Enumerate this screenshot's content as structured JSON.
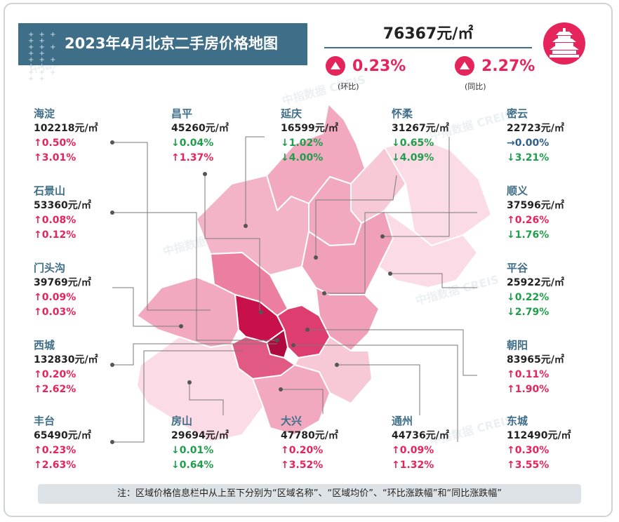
{
  "header": {
    "title": "2023年4月北京二手房价格地图",
    "avg_price": "76367元/㎡",
    "mom_value": "0.23%",
    "mom_label": "(环比)",
    "yoy_value": "2.27%",
    "yoy_label": "(同比)",
    "logo_icon": "temple-of-heaven-icon"
  },
  "colors": {
    "accent": "#3f6e88",
    "up": "#e5245c",
    "down": "#1f9e4b"
  },
  "watermark": "中指数据 CREIS",
  "districts": [
    {
      "id": "haidian",
      "name": "海淀",
      "price": "102218元/㎡",
      "mom": "↑0.50%",
      "mom_dir": "up",
      "yoy": "↑3.01%",
      "yoy_dir": "up"
    },
    {
      "id": "changping",
      "name": "昌平",
      "price": "45260元/㎡",
      "mom": "↓0.04%",
      "mom_dir": "down",
      "yoy": "↑1.37%",
      "yoy_dir": "up"
    },
    {
      "id": "yanqing",
      "name": "延庆",
      "price": "16599元/㎡",
      "mom": "↓1.02%",
      "mom_dir": "down",
      "yoy": "↓4.00%",
      "yoy_dir": "down"
    },
    {
      "id": "huairou",
      "name": "怀柔",
      "price": "31267元/㎡",
      "mom": "↓0.65%",
      "mom_dir": "down",
      "yoy": "↓4.09%",
      "yoy_dir": "down"
    },
    {
      "id": "miyun",
      "name": "密云",
      "price": "22723元/㎡",
      "mom": "→0.00%",
      "mom_dir": "flat",
      "yoy": "↓3.21%",
      "yoy_dir": "down"
    },
    {
      "id": "shijingshan",
      "name": "石景山",
      "price": "53360元/㎡",
      "mom": "↑0.08%",
      "mom_dir": "up",
      "yoy": "↑0.12%",
      "yoy_dir": "up"
    },
    {
      "id": "shunyi",
      "name": "顺义",
      "price": "37596元/㎡",
      "mom": "↑0.26%",
      "mom_dir": "up",
      "yoy": "↓1.76%",
      "yoy_dir": "down"
    },
    {
      "id": "mentougou",
      "name": "门头沟",
      "price": "39769元/㎡",
      "mom": "↑0.09%",
      "mom_dir": "up",
      "yoy": "↑0.03%",
      "yoy_dir": "up"
    },
    {
      "id": "pinggu",
      "name": "平谷",
      "price": "25922元/㎡",
      "mom": "↓0.22%",
      "mom_dir": "down",
      "yoy": "↓2.79%",
      "yoy_dir": "down"
    },
    {
      "id": "xicheng",
      "name": "西城",
      "price": "132830元/㎡",
      "mom": "↑0.20%",
      "mom_dir": "up",
      "yoy": "↑2.62%",
      "yoy_dir": "up"
    },
    {
      "id": "chaoyang",
      "name": "朝阳",
      "price": "83965元/㎡",
      "mom": "↑0.11%",
      "mom_dir": "up",
      "yoy": "↑1.90%",
      "yoy_dir": "up"
    },
    {
      "id": "fengtai",
      "name": "丰台",
      "price": "65490元/㎡",
      "mom": "↑0.23%",
      "mom_dir": "up",
      "yoy": "↑2.63%",
      "yoy_dir": "up"
    },
    {
      "id": "fangshan",
      "name": "房山",
      "price": "29694元/㎡",
      "mom": "↓0.01%",
      "mom_dir": "down",
      "yoy": "↓0.64%",
      "yoy_dir": "down"
    },
    {
      "id": "daxing",
      "name": "大兴",
      "price": "47780元/㎡",
      "mom": "↑0.20%",
      "mom_dir": "up",
      "yoy": "↑3.52%",
      "yoy_dir": "up"
    },
    {
      "id": "tongzhou",
      "name": "通州",
      "price": "44736元/㎡",
      "mom": "↑0.09%",
      "mom_dir": "up",
      "yoy": "↑1.32%",
      "yoy_dir": "up"
    },
    {
      "id": "dongcheng",
      "name": "东城",
      "price": "112490元/㎡",
      "mom": "↑0.30%",
      "mom_dir": "up",
      "yoy": "↑3.55%",
      "yoy_dir": "up"
    }
  ],
  "note": "注：区域价格信息栏中从上至下分别为“区域名称”、“区域均价”、“环比涨跌幅”和“同比涨跌幅”"
}
